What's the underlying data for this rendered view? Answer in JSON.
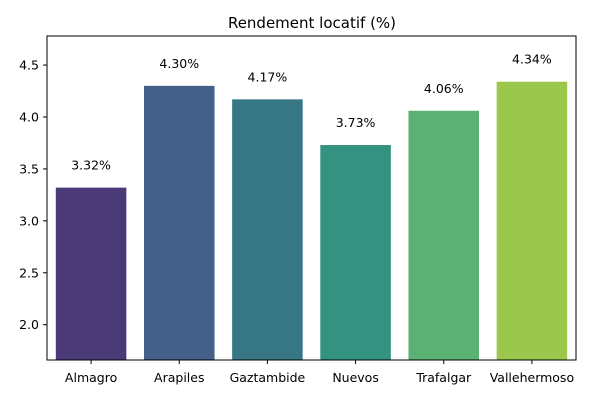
{
  "chart_data": {
    "type": "bar",
    "title": "Rendement locatif (%)",
    "xlabel": "",
    "ylabel": "",
    "categories": [
      "Almagro",
      "Arapiles",
      "Gaztambide",
      "Nuevos",
      "Trafalgar",
      "Vallehermoso"
    ],
    "values": [
      3.32,
      4.3,
      4.17,
      3.73,
      4.06,
      4.34
    ],
    "data_labels": [
      "3.32%",
      "4.30%",
      "4.17%",
      "3.73%",
      "4.06%",
      "4.34%"
    ],
    "colors": [
      "#4a3a78",
      "#445f88",
      "#377785",
      "#349280",
      "#5bb173",
      "#9bc74d"
    ],
    "ylim": [
      1.66,
      4.78
    ],
    "yticks": [
      2.0,
      2.5,
      3.0,
      3.5,
      4.0,
      4.5
    ],
    "ytick_labels": [
      "2.0",
      "2.5",
      "3.0",
      "3.5",
      "4.0",
      "4.5"
    ],
    "grid": false,
    "legend": "none"
  }
}
